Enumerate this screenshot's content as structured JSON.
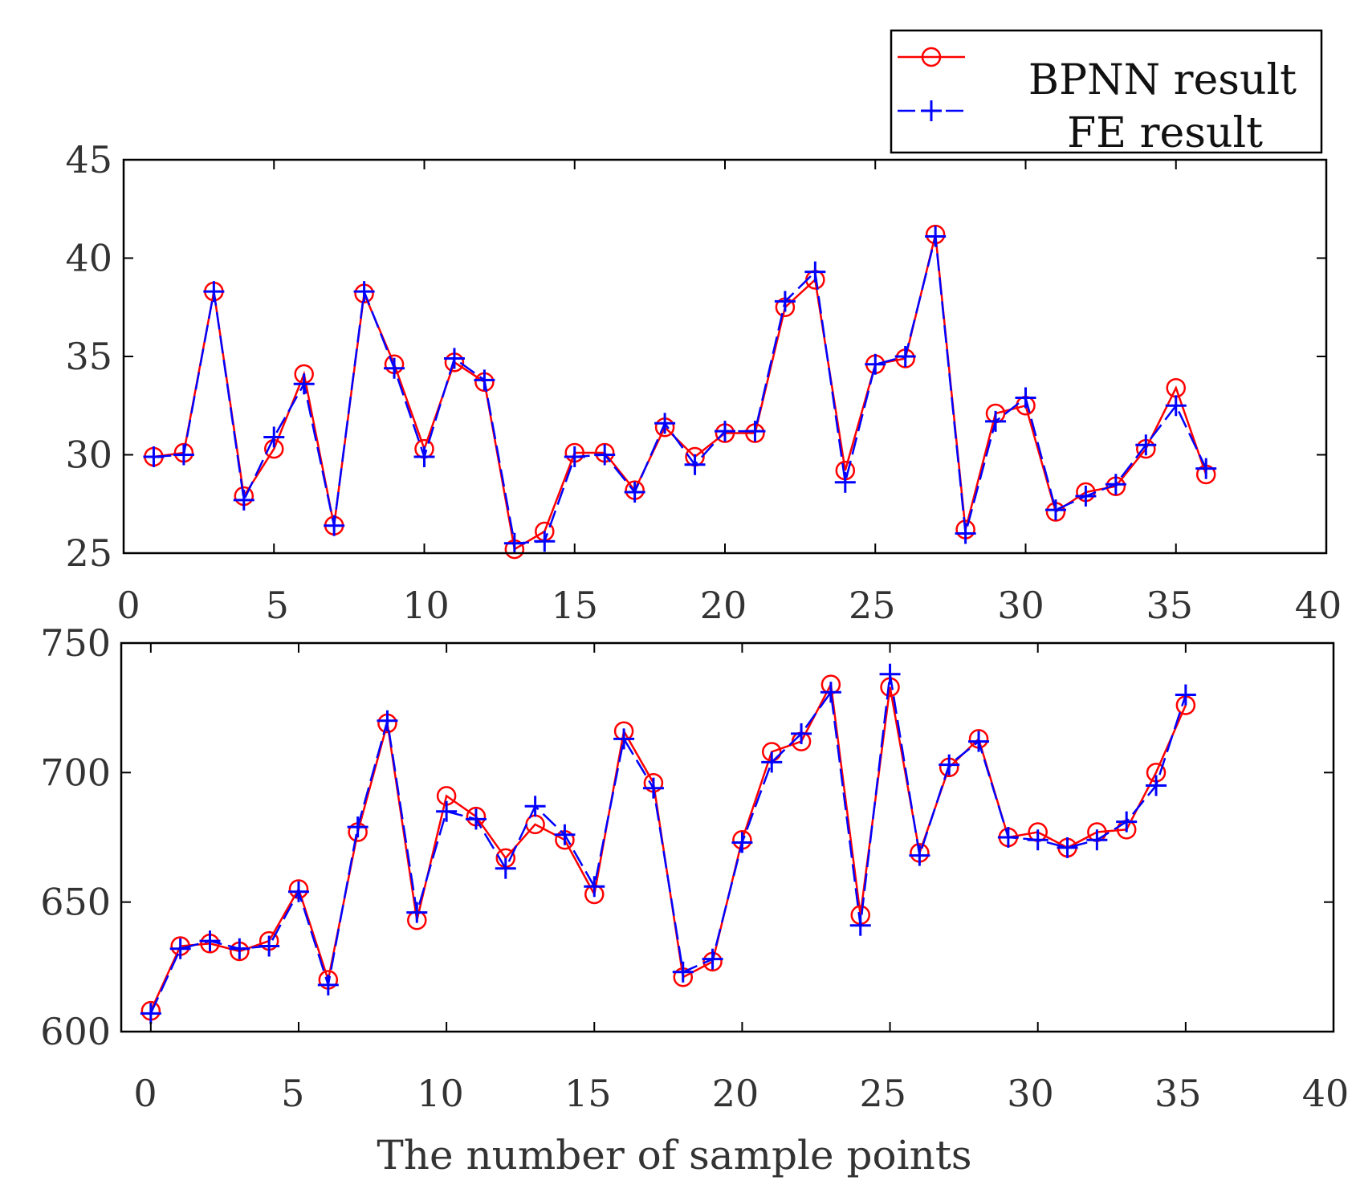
{
  "figure": {
    "xlabel": "The number of sample points",
    "legend": {
      "entries": [
        {
          "label": "BPNN result",
          "color": "#ff0000",
          "marker": "circle",
          "line": "solid"
        },
        {
          "label": "FE result",
          "color": "#0000ff",
          "marker": "plus",
          "line": "dashed"
        }
      ]
    }
  },
  "chart_data": [
    {
      "type": "line",
      "xlim": [
        0,
        40
      ],
      "ylim": [
        25,
        45
      ],
      "xticks": [
        "0",
        "5",
        "10",
        "15",
        "20",
        "25",
        "30",
        "35",
        "40"
      ],
      "yticks": [
        "25",
        "30",
        "35",
        "40",
        "45"
      ],
      "x": [
        1,
        2,
        3,
        4,
        5,
        6,
        7,
        8,
        9,
        10,
        11,
        12,
        13,
        14,
        15,
        16,
        17,
        18,
        19,
        20,
        21,
        22,
        23,
        24,
        25,
        26,
        27,
        28,
        29,
        30,
        31,
        32,
        33,
        34,
        35,
        36
      ],
      "series": [
        {
          "name": "BPNN result",
          "color": "#ff0000",
          "values": [
            29.9,
            30.1,
            38.3,
            27.9,
            30.3,
            34.1,
            26.4,
            38.2,
            34.6,
            30.3,
            34.7,
            33.7,
            25.2,
            26.1,
            30.1,
            30.1,
            28.2,
            31.4,
            29.9,
            31.1,
            31.1,
            37.5,
            38.9,
            29.2,
            34.6,
            34.9,
            41.2,
            26.2,
            32.1,
            32.5,
            27.1,
            28.1,
            28.4,
            30.3,
            33.4,
            29.0
          ]
        },
        {
          "name": "FE result",
          "color": "#0000ff",
          "values": [
            29.9,
            30.0,
            38.3,
            27.7,
            30.9,
            33.6,
            26.4,
            38.3,
            34.4,
            29.9,
            34.9,
            33.8,
            25.5,
            25.6,
            29.9,
            30.0,
            28.1,
            31.6,
            29.5,
            31.2,
            31.2,
            37.8,
            39.3,
            28.6,
            34.6,
            35.0,
            41.1,
            26.0,
            31.7,
            32.9,
            27.2,
            27.9,
            28.5,
            30.5,
            32.5,
            29.3
          ]
        }
      ]
    },
    {
      "type": "line",
      "xlim": [
        -1,
        40
      ],
      "ylim": [
        600,
        750
      ],
      "xticks": [
        "0",
        "5",
        "10",
        "15",
        "20",
        "25",
        "30",
        "35",
        "40"
      ],
      "yticks": [
        "600",
        "650",
        "700",
        "750"
      ],
      "x": [
        0,
        1,
        2,
        3,
        4,
        5,
        6,
        7,
        8,
        9,
        10,
        11,
        12,
        13,
        14,
        15,
        16,
        17,
        18,
        19,
        20,
        21,
        22,
        23,
        24,
        25,
        26,
        27,
        28,
        29,
        30,
        31,
        32,
        33,
        34,
        35
      ],
      "series": [
        {
          "name": "BPNN result",
          "color": "#ff0000",
          "values": [
            608,
            633,
            634,
            631,
            635,
            655,
            620,
            677,
            719,
            643,
            691,
            683,
            667,
            680,
            674,
            653,
            716,
            696,
            621,
            627,
            674,
            708,
            712,
            734,
            645,
            733,
            669,
            702,
            713,
            675,
            677,
            671,
            677,
            678,
            700,
            726
          ]
        },
        {
          "name": "FE result",
          "color": "#0000ff",
          "values": [
            607,
            632,
            635,
            632,
            633,
            654,
            618,
            679,
            720,
            646,
            685,
            682,
            663,
            687,
            676,
            656,
            713,
            694,
            623,
            628,
            673,
            704,
            715,
            731,
            641,
            738,
            668,
            703,
            712,
            675,
            674,
            671,
            674,
            681,
            695,
            730
          ]
        }
      ]
    }
  ]
}
